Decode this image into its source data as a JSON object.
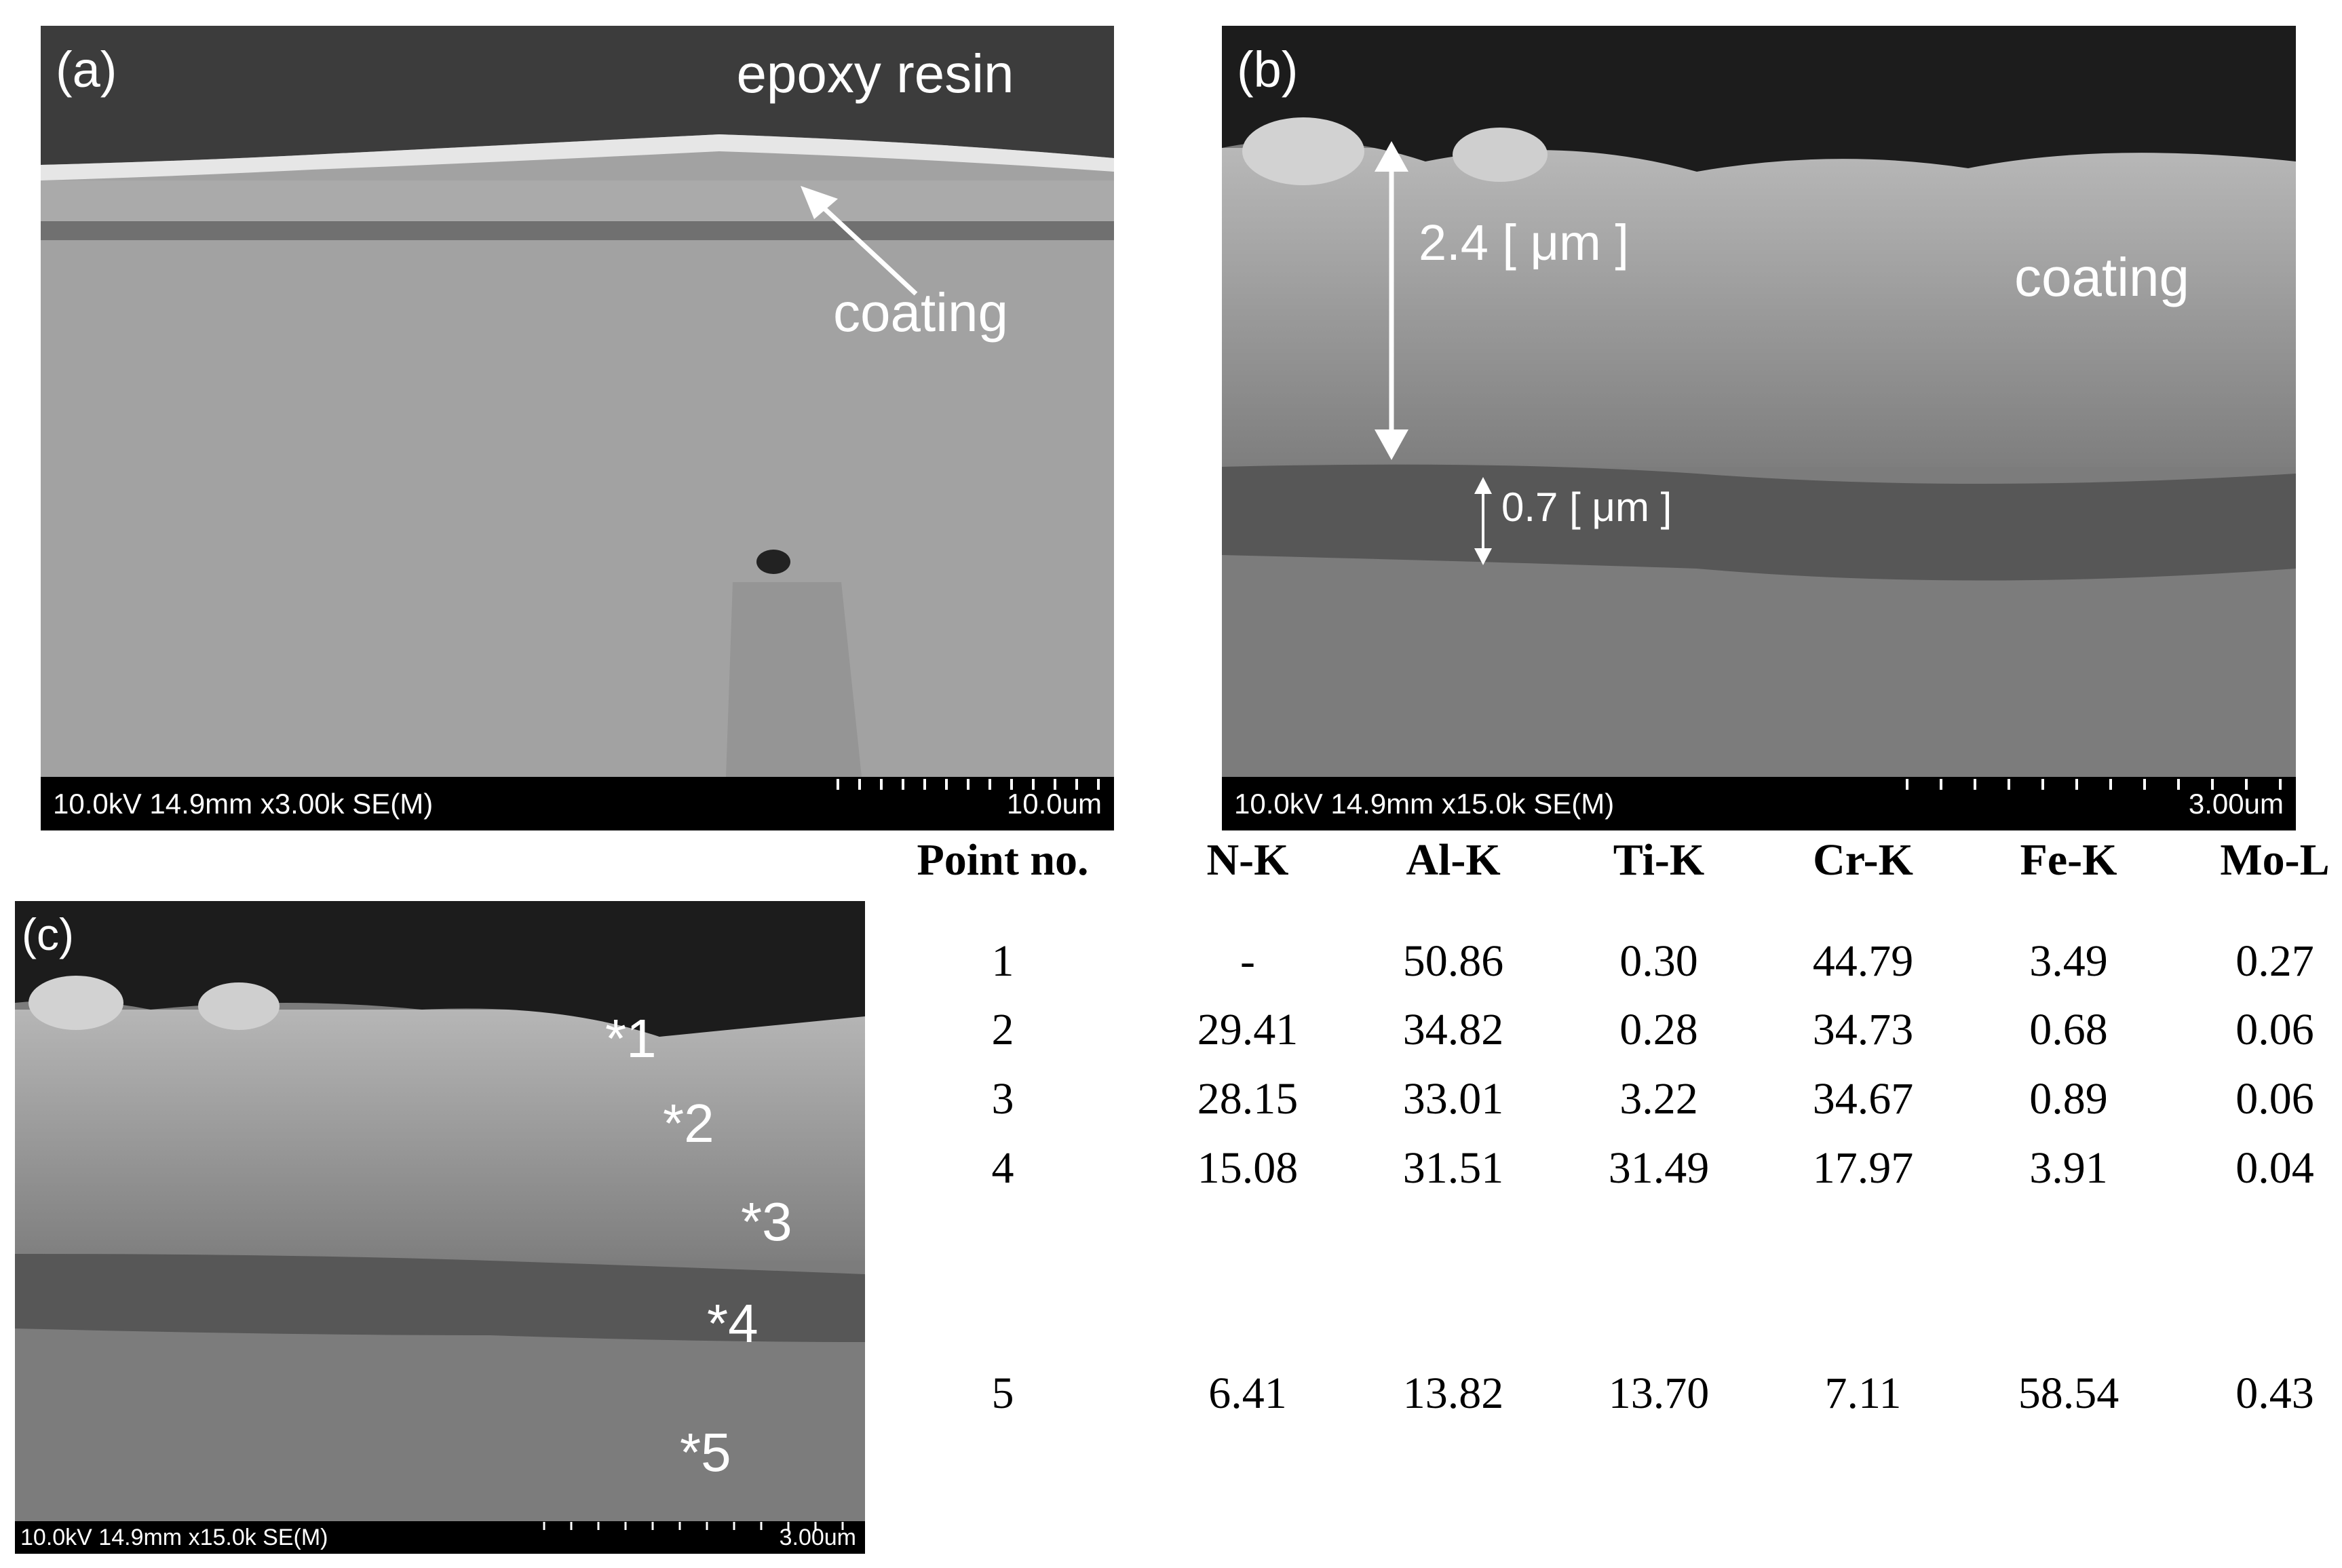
{
  "panels": [
    {
      "label": "(a)",
      "annotations": [
        "epoxy resin",
        "coating"
      ],
      "info": "10.0kV 14.9mm x3.00k SE(M)",
      "scale": "10.0um"
    },
    {
      "label": "(b)",
      "annotations": [
        "2.4 [ μm ]",
        "coating",
        "0.7 [ μm ]"
      ],
      "info": "10.0kV 14.9mm x15.0k SE(M)",
      "scale": "3.00um"
    },
    {
      "label": "(c)",
      "points": [
        "*1",
        "*2",
        "*3",
        "*4",
        "*5"
      ],
      "info": "10.0kV 14.9mm x15.0k SE(M)",
      "scale": "3.00um"
    }
  ],
  "table": {
    "headers": [
      "Point no.",
      "N-K",
      "Al-K",
      "Ti-K",
      "Cr-K",
      "Fe-K",
      "Mo-L"
    ],
    "rows": [
      [
        "1",
        "-",
        "50.86",
        "0.30",
        "44.79",
        "3.49",
        "0.27"
      ],
      [
        "2",
        "29.41",
        "34.82",
        "0.28",
        "34.73",
        "0.68",
        "0.06"
      ],
      [
        "3",
        "28.15",
        "33.01",
        "3.22",
        "34.67",
        "0.89",
        "0.06"
      ],
      [
        "4",
        "15.08",
        "31.51",
        "31.49",
        "17.97",
        "3.91",
        "0.04"
      ],
      [
        "5",
        "6.41",
        "13.82",
        "13.70",
        "7.11",
        "58.54",
        "0.43"
      ]
    ]
  }
}
